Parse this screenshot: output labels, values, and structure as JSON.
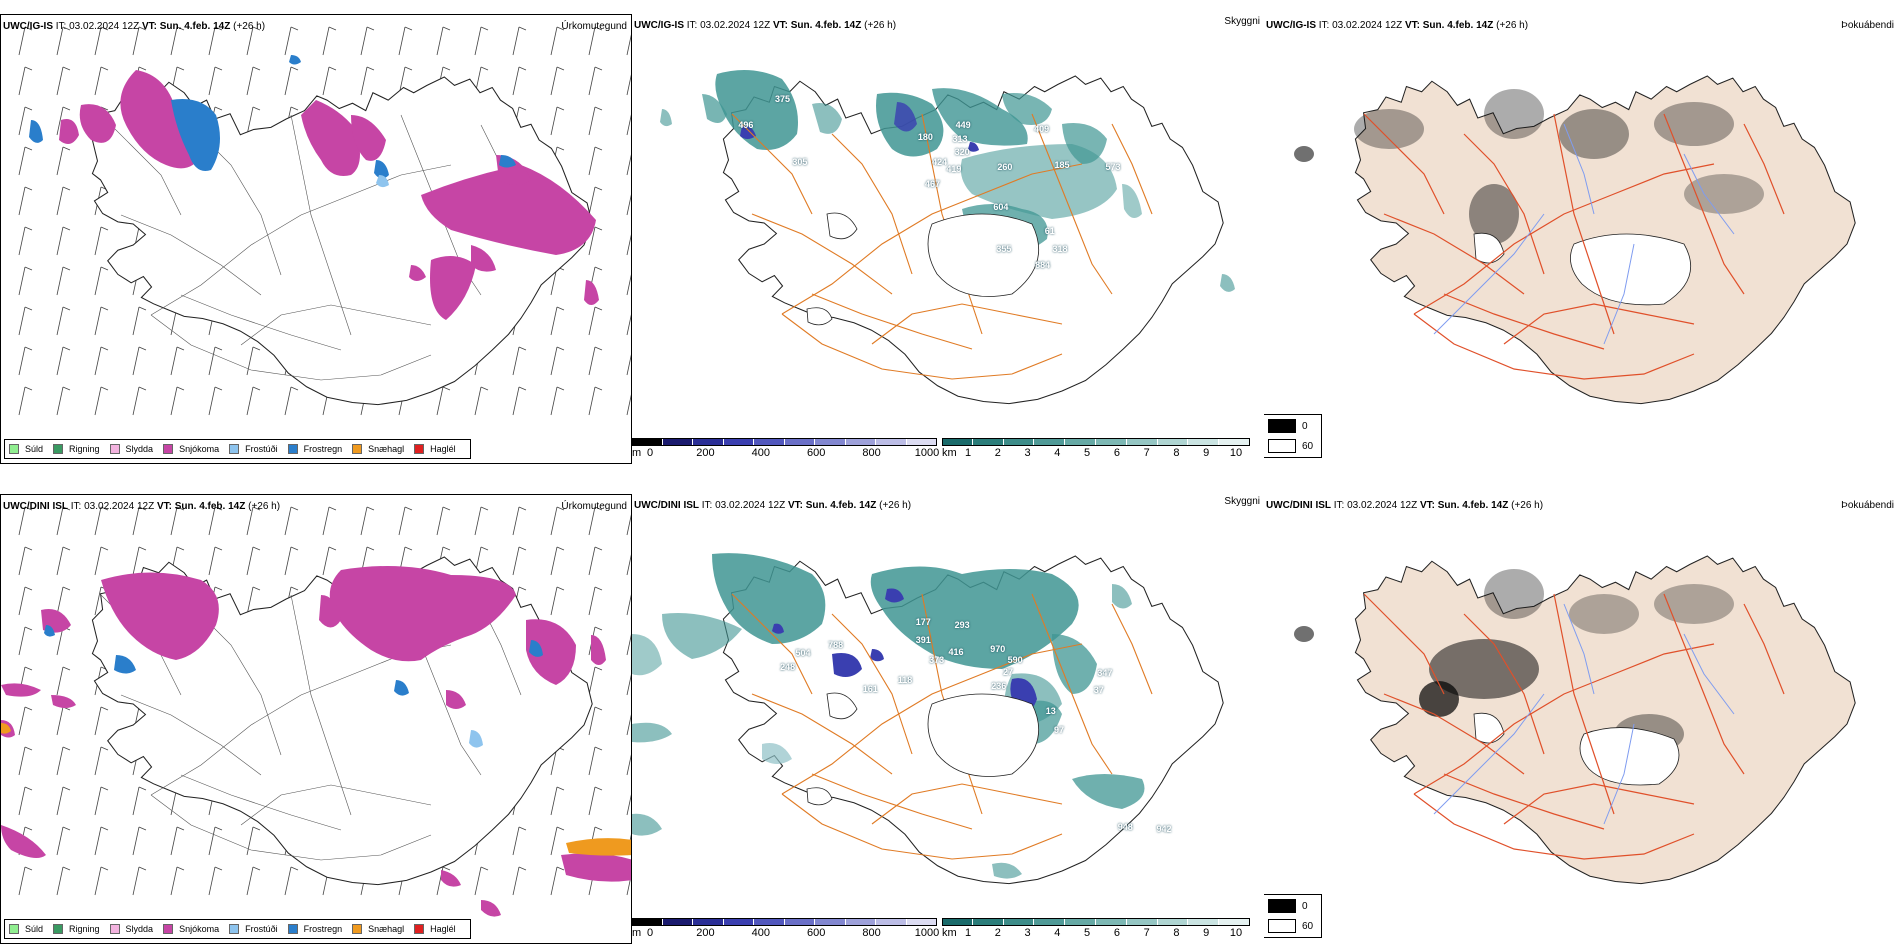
{
  "rows": [
    {
      "model": "UWC/IG-IS",
      "it_label": "IT:",
      "it_value": "03.02.2024 12Z",
      "vt_label": "VT:",
      "vt_value": "Sun. 4.feb. 14Z",
      "lead": "(+26 h)",
      "panel_titles": {
        "precip": "Úrkomutegund",
        "vis": "Skyggni",
        "fog": "Þokuábendi"
      },
      "vis_labels": [
        {
          "text": "375",
          "x": 128,
          "y": 62
        },
        {
          "text": "496",
          "x": 92,
          "y": 87
        },
        {
          "text": "305",
          "x": 145,
          "y": 122
        },
        {
          "text": "180",
          "x": 268,
          "y": 98
        },
        {
          "text": "449",
          "x": 305,
          "y": 87
        },
        {
          "text": "313",
          "x": 302,
          "y": 100
        },
        {
          "text": "320",
          "x": 304,
          "y": 112
        },
        {
          "text": "424",
          "x": 282,
          "y": 122
        },
        {
          "text": "419",
          "x": 296,
          "y": 129
        },
        {
          "text": "467",
          "x": 275,
          "y": 143
        },
        {
          "text": "409",
          "x": 382,
          "y": 90
        },
        {
          "text": "260",
          "x": 346,
          "y": 127
        },
        {
          "text": "185",
          "x": 402,
          "y": 125
        },
        {
          "text": "573",
          "x": 452,
          "y": 127
        },
        {
          "text": "604",
          "x": 342,
          "y": 165
        },
        {
          "text": "61",
          "x": 390,
          "y": 188
        },
        {
          "text": "355",
          "x": 345,
          "y": 205
        },
        {
          "text": "318",
          "x": 400,
          "y": 205
        },
        {
          "text": "884",
          "x": 383,
          "y": 220
        }
      ]
    },
    {
      "model": "UWC/DINI ISL",
      "it_label": "IT:",
      "it_value": "03.02.2024 12Z",
      "vt_label": "VT:",
      "vt_value": "Sun. 4.feb. 14Z",
      "lead": "(+26 h)",
      "panel_titles": {
        "precip": "Úrkomutegund",
        "vis": "Skyggni",
        "fog": "Þokuábendi"
      },
      "vis_labels": [
        {
          "text": "504",
          "x": 148,
          "y": 132
        },
        {
          "text": "248",
          "x": 133,
          "y": 146
        },
        {
          "text": "788",
          "x": 180,
          "y": 125
        },
        {
          "text": "161",
          "x": 214,
          "y": 167
        },
        {
          "text": "118",
          "x": 248,
          "y": 158
        },
        {
          "text": "177",
          "x": 266,
          "y": 103
        },
        {
          "text": "391",
          "x": 266,
          "y": 120
        },
        {
          "text": "293",
          "x": 304,
          "y": 106
        },
        {
          "text": "373",
          "x": 279,
          "y": 139
        },
        {
          "text": "416",
          "x": 298,
          "y": 131
        },
        {
          "text": "970",
          "x": 339,
          "y": 129
        },
        {
          "text": "590",
          "x": 356,
          "y": 139
        },
        {
          "text": "27",
          "x": 349,
          "y": 150
        },
        {
          "text": "236",
          "x": 340,
          "y": 164
        },
        {
          "text": "347",
          "x": 444,
          "y": 151
        },
        {
          "text": "37",
          "x": 438,
          "y": 168
        },
        {
          "text": "13",
          "x": 391,
          "y": 188
        },
        {
          "text": "97",
          "x": 399,
          "y": 206
        },
        {
          "text": "948",
          "x": 464,
          "y": 298
        },
        {
          "text": "942",
          "x": 502,
          "y": 300
        }
      ]
    }
  ],
  "precip_legend": [
    {
      "label": "Súld",
      "color": "#90ee90"
    },
    {
      "label": "Rigning",
      "color": "#3a9a62"
    },
    {
      "label": "Slydda",
      "color": "#f3b3df"
    },
    {
      "label": "Snjókoma",
      "color": "#c645a5"
    },
    {
      "label": "Frostúði",
      "color": "#8ec4ee"
    },
    {
      "label": "Frostregn",
      "color": "#2a7ecb"
    },
    {
      "label": "Snæhagl",
      "color": "#ef9a1f"
    },
    {
      "label": "Haglél",
      "color": "#e02020"
    }
  ],
  "vis_colorbar_m": {
    "unit": "m",
    "labels": [
      "0",
      "200",
      "400",
      "600",
      "800",
      "1000"
    ],
    "colors": [
      "#000000",
      "#1a1a6e",
      "#2a2e96",
      "#3a3fb0",
      "#5157bd",
      "#6a6fc7",
      "#8287d0",
      "#9ea1da",
      "#bcbde6",
      "#dcdcf2"
    ]
  },
  "vis_colorbar_km": {
    "unit": "km",
    "labels": [
      "1",
      "2",
      "3",
      "4",
      "5",
      "6",
      "7",
      "8",
      "9",
      "10"
    ],
    "colors": [
      "#1a6b6b",
      "#2b7d7a",
      "#3d8c89",
      "#509a97",
      "#66a9a5",
      "#7db8b4",
      "#95c6c3",
      "#afd5d2",
      "#cae4e2",
      "#e5f2f1"
    ]
  },
  "fog_legend": [
    {
      "label": "0",
      "color": "#000000"
    },
    {
      "label": "60",
      "color": "#ffffff"
    }
  ],
  "colors": {
    "snow": "#c645a5",
    "freezing_rain": "#2a7ecb",
    "freezing_drizzle": "#8ec4ee",
    "rain": "#3a9a62",
    "ice_pellets": "#ef9a1f",
    "hail": "#e02020",
    "visibility_teal": "#3f9593",
    "visibility_blue": "#3a3fb0",
    "roads": "#e07b25",
    "fog_land": "#f1e1d3",
    "fog_roads": "#e0502a",
    "fog_rivers": "#7f9cf0"
  }
}
